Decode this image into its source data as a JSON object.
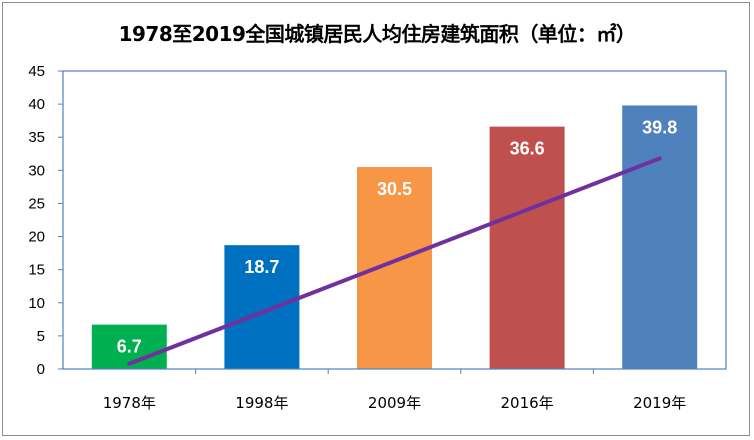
{
  "chart_data": {
    "type": "bar",
    "title": "1978至2019全国城镇居民人均住房建筑面积（单位：㎡）",
    "categories": [
      "1978年",
      "1998年",
      "2009年",
      "2016年",
      "2019年"
    ],
    "values": [
      6.7,
      18.7,
      30.5,
      36.6,
      39.8
    ],
    "data_labels": [
      "6.7",
      "18.7",
      "30.5",
      "36.6",
      "39.8"
    ],
    "bar_colors": [
      "#00b050",
      "#0070c0",
      "#f79646",
      "#c0504d",
      "#4f81bd"
    ],
    "trendline": {
      "type": "linear",
      "color": "#7030a0",
      "start_value": 0.8,
      "end_value": 31.8
    },
    "ylim": [
      0,
      45
    ],
    "yticks": [
      "0",
      "5",
      "10",
      "15",
      "20",
      "25",
      "30",
      "35",
      "40",
      "45"
    ],
    "xlabel": "",
    "ylabel": "",
    "grid": false,
    "legend": "none"
  }
}
